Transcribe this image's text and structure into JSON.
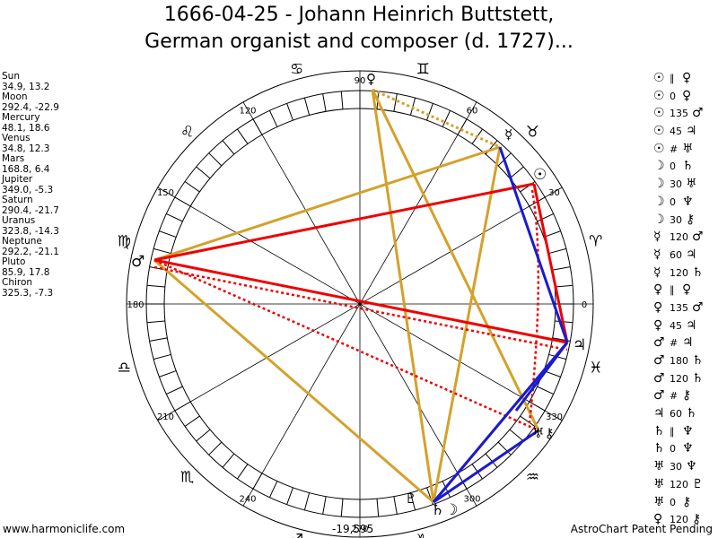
{
  "title": {
    "line1": "1666-04-25 - Johann Heinrich Buttstett,",
    "line2": "German organist and composer (d. 1727)..."
  },
  "planets": [
    {
      "name": "Sun",
      "value": "34.9, 13.2"
    },
    {
      "name": "Moon",
      "value": "292.4, -22.9"
    },
    {
      "name": "Mercury",
      "value": "48.1, 18.6"
    },
    {
      "name": "Venus",
      "value": "34.8, 12.3"
    },
    {
      "name": "Mars",
      "value": "168.8, 6.4"
    },
    {
      "name": "Jupiter",
      "value": "349.0, -5.3"
    },
    {
      "name": "Saturn",
      "value": "290.4, -21.7"
    },
    {
      "name": "Uranus",
      "value": "323.8, -14.3"
    },
    {
      "name": "Neptune",
      "value": "292.2, -21.1"
    },
    {
      "name": "Pluto",
      "value": "85.9, 17.8"
    },
    {
      "name": "Chiron",
      "value": "325.3, -7.3"
    }
  ],
  "aspects": [
    {
      "p1": "☉",
      "asp": "∥",
      "p2": "♀"
    },
    {
      "p1": "☉",
      "asp": "0",
      "p2": "♀"
    },
    {
      "p1": "☉",
      "asp": "135",
      "p2": "♂"
    },
    {
      "p1": "☉",
      "asp": "45",
      "p2": "♃"
    },
    {
      "p1": "☉",
      "asp": "#",
      "p2": "♅"
    },
    {
      "p1": "☽",
      "asp": "0",
      "p2": "♄"
    },
    {
      "p1": "☽",
      "asp": "30",
      "p2": "♅"
    },
    {
      "p1": "☽",
      "asp": "0",
      "p2": "♆"
    },
    {
      "p1": "☽",
      "asp": "30",
      "p2": "⚷"
    },
    {
      "p1": "☿",
      "asp": "120",
      "p2": "♂"
    },
    {
      "p1": "☿",
      "asp": "60",
      "p2": "♃"
    },
    {
      "p1": "☿",
      "asp": "120",
      "p2": "♄"
    },
    {
      "p1": "♀",
      "asp": "∥",
      "p2": "♀"
    },
    {
      "p1": "♀",
      "asp": "135",
      "p2": "♂"
    },
    {
      "p1": "♀",
      "asp": "45",
      "p2": "♃"
    },
    {
      "p1": "♂",
      "asp": "#",
      "p2": "♃"
    },
    {
      "p1": "♂",
      "asp": "180",
      "p2": "♄"
    },
    {
      "p1": "♂",
      "asp": "120",
      "p2": "♄"
    },
    {
      "p1": "♂",
      "asp": "#",
      "p2": "⚷"
    },
    {
      "p1": "♃",
      "asp": "60",
      "p2": "♄"
    },
    {
      "p1": "♄",
      "asp": "∥",
      "p2": "♆"
    },
    {
      "p1": "♄",
      "asp": "0",
      "p2": "♆"
    },
    {
      "p1": "♅",
      "asp": "30",
      "p2": "♆"
    },
    {
      "p1": "♅",
      "asp": "120",
      "p2": "♇"
    },
    {
      "p1": "♅",
      "asp": "0",
      "p2": "⚷"
    },
    {
      "p1": "♀",
      "asp": "120",
      "p2": "⚷"
    }
  ],
  "degree_labels": [
    "0",
    "30",
    "60",
    "90",
    "120",
    "150",
    "180",
    "210",
    "240",
    "270",
    "300",
    "330"
  ],
  "zodiac": [
    "♈",
    "♉",
    "♊",
    "♋",
    "♌",
    "♍",
    "♎",
    "♏",
    "♐",
    "♑",
    "♒",
    "♓"
  ],
  "chart_glyphs": {
    "venus": "♀",
    "mercury": "☿",
    "sun": "☉",
    "mars": "♂",
    "jupiter": "♃",
    "uranus_chiron": "♅⚷",
    "pluto": "♇",
    "moon_saturn_neptune": "♄☽"
  },
  "colors": {
    "red": "#ee0000",
    "blue": "#1a1ad0",
    "gold": "#d4a12a"
  },
  "footer": {
    "left": "www.harmoniclife.com",
    "center": "-19,595",
    "right": "AstroChart Patent Pending"
  }
}
